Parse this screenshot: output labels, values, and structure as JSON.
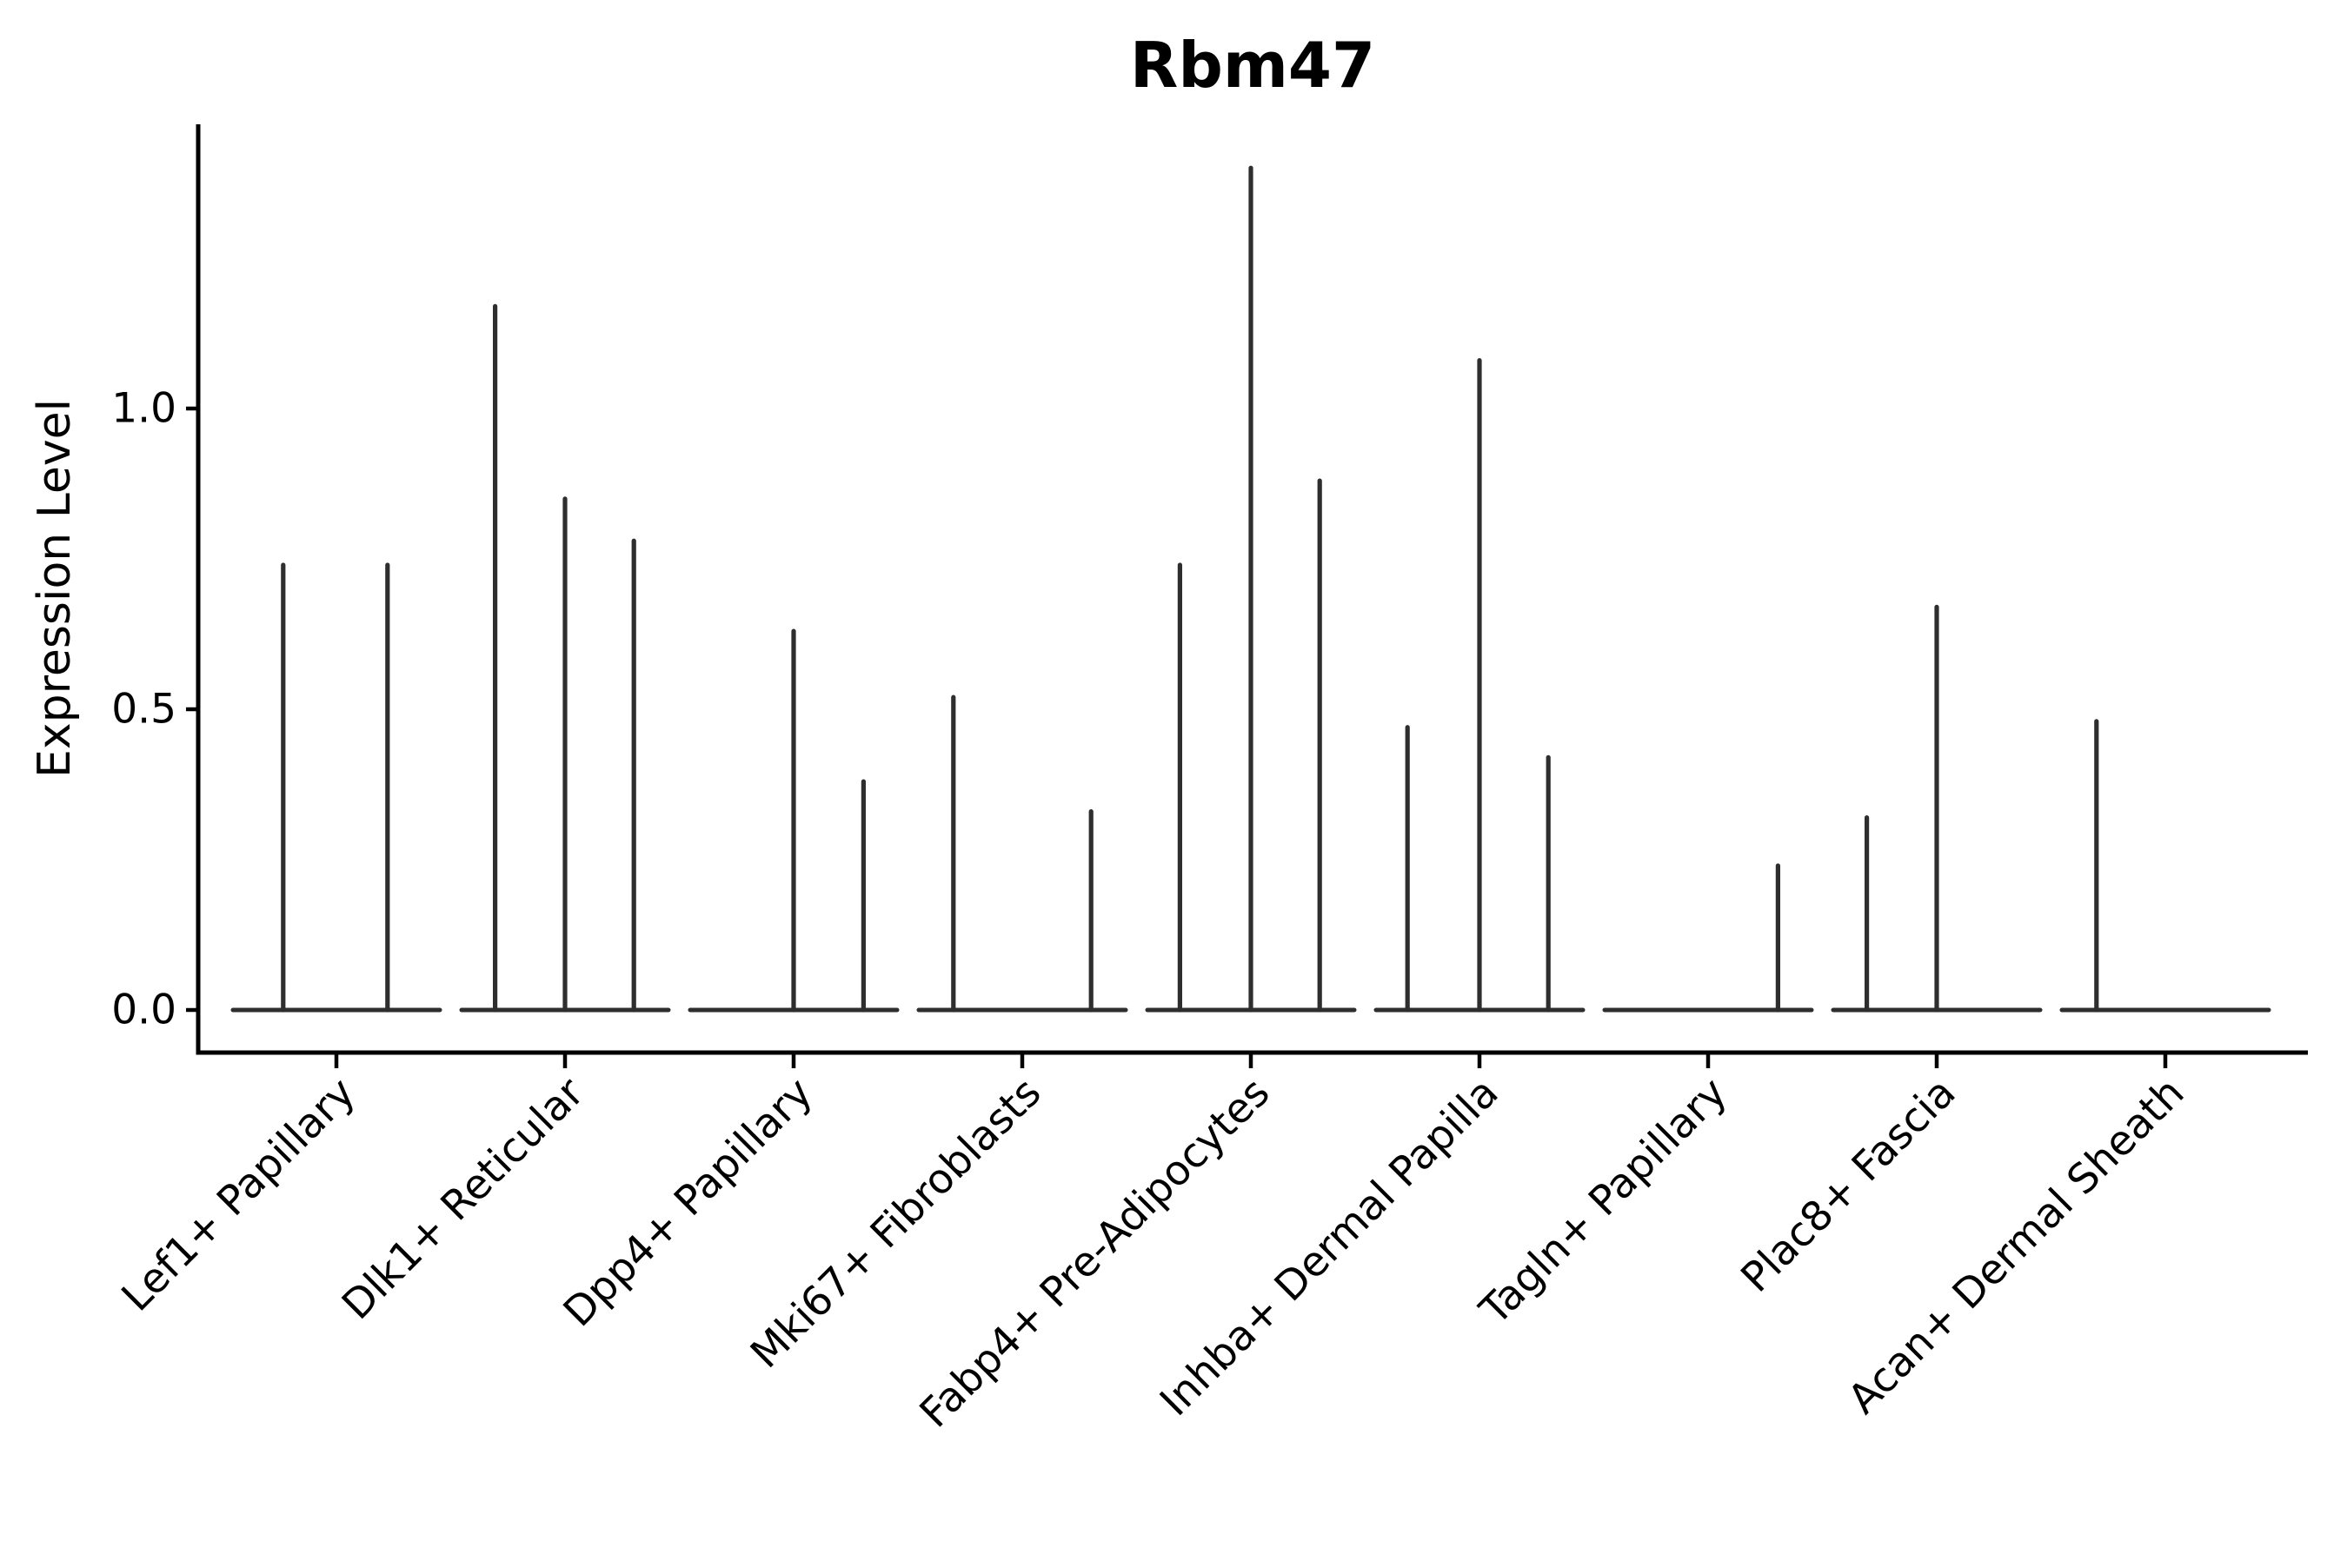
{
  "title": "Rbm47",
  "y_axis": {
    "label": "Expression Level",
    "tick_labels": [
      "0.0",
      "0.5",
      "1.0"
    ]
  },
  "colors": {
    "violin_stroke": "#2e2e2e",
    "axis_stroke": "#000000",
    "background": "#ffffff"
  },
  "chart_data": {
    "type": "violin",
    "title": "Rbm47",
    "xlabel": "",
    "ylabel": "Expression Level",
    "ylim": [
      -0.07,
      1.47
    ],
    "yticks": [
      0.0,
      0.5,
      1.0
    ],
    "ytick_labels": [
      "0.0",
      "0.5",
      "1.0"
    ],
    "grid": false,
    "legend": false,
    "categories": [
      "Lef1+ Papillary",
      "Dlk1+ Reticular",
      "Dpp4+ Papillary",
      "Mki67+ Fibroblasts",
      "Fabp4+ Pre-Adipocytes",
      "Inhba+ Dermal Papilla",
      "Tagln+ Papillary",
      "Plac8+ Fascia",
      "Acan+ Dermal Sheath"
    ],
    "description": "Violin plot of Rbm47 expression; violins are collapsed to near-zero width: each group shows a flat density baseline at 0 with thin vertical density spikes reaching the listed maximum expression value. Sub-violin slot offsets are fractions of the group width (group half-width = 1).",
    "groups": [
      {
        "category": "Lef1+ Papillary",
        "violins": [
          {
            "slot_offset": -0.51,
            "max_expression": 0.74
          },
          {
            "slot_offset": 0.49,
            "max_expression": 0.74
          }
        ]
      },
      {
        "category": "Dlk1+ Reticular",
        "violins": [
          {
            "slot_offset": -0.67,
            "max_expression": 1.17
          },
          {
            "slot_offset": 0.0,
            "max_expression": 0.85
          },
          {
            "slot_offset": 0.66,
            "max_expression": 0.78
          }
        ]
      },
      {
        "category": "Dpp4+ Papillary",
        "violins": [
          {
            "slot_offset": 0.0,
            "max_expression": 0.63
          },
          {
            "slot_offset": 0.67,
            "max_expression": 0.38
          }
        ]
      },
      {
        "category": "Mki67+ Fibroblasts",
        "violins": [
          {
            "slot_offset": -0.66,
            "max_expression": 0.52
          },
          {
            "slot_offset": 0.66,
            "max_expression": 0.33
          }
        ]
      },
      {
        "category": "Fabp4+ Pre-Adipocytes",
        "violins": [
          {
            "slot_offset": -0.68,
            "max_expression": 0.74
          },
          {
            "slot_offset": 0.0,
            "max_expression": 1.4
          },
          {
            "slot_offset": 0.66,
            "max_expression": 0.88
          }
        ]
      },
      {
        "category": "Inhba+ Dermal Papilla",
        "violins": [
          {
            "slot_offset": -0.69,
            "max_expression": 0.47
          },
          {
            "slot_offset": 0.0,
            "max_expression": 1.08
          },
          {
            "slot_offset": 0.66,
            "max_expression": 0.42
          }
        ]
      },
      {
        "category": "Tagln+ Papillary",
        "violins": [
          {
            "slot_offset": 0.67,
            "max_expression": 0.24
          }
        ]
      },
      {
        "category": "Plac8+ Fascia",
        "violins": [
          {
            "slot_offset": -0.67,
            "max_expression": 0.32
          },
          {
            "slot_offset": 0.0,
            "max_expression": 0.67
          }
        ]
      },
      {
        "category": "Acan+ Dermal Sheath",
        "violins": [
          {
            "slot_offset": -0.66,
            "max_expression": 0.48
          }
        ]
      }
    ]
  }
}
